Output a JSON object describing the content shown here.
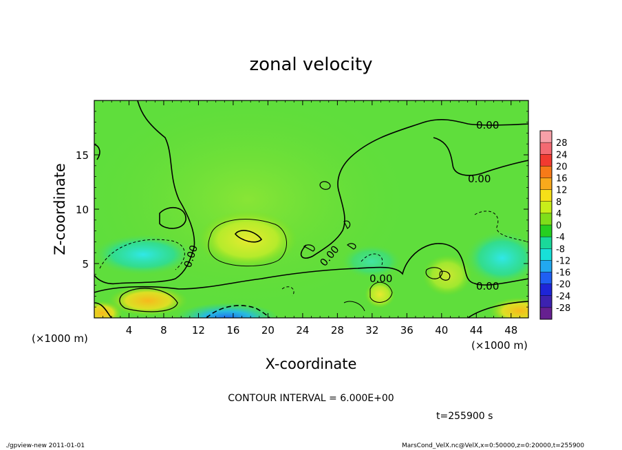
{
  "chart_data": {
    "type": "heatmap",
    "title": "zonal velocity",
    "xlabel": "X-coordinate",
    "ylabel": "Z-coordinate",
    "x_unit_label": "(×1000 m)",
    "z_unit_label": "(×1000 m)",
    "xlim": [
      0,
      50
    ],
    "ylim": [
      0,
      20
    ],
    "x_ticks": [
      4,
      8,
      12,
      16,
      20,
      24,
      28,
      32,
      36,
      40,
      44,
      48
    ],
    "y_ticks": [
      5,
      10,
      15
    ],
    "colorbar_levels": [
      28,
      24,
      20,
      16,
      12,
      8,
      4,
      0,
      -4,
      -8,
      -12,
      -16,
      -20,
      -24,
      -28
    ],
    "colorbar_colors": [
      "#f7a0a8",
      "#f46a72",
      "#f23a30",
      "#f77a18",
      "#f8a91c",
      "#f6e018",
      "#c8ee1a",
      "#7fde1a",
      "#26cf20",
      "#1ad89a",
      "#18e0d8",
      "#22a8f0",
      "#1f5ff3",
      "#1e25d8",
      "#3d22b0",
      "#662090"
    ],
    "contour_interval_text": "CONTOUR INTERVAL = 6.000E+00",
    "contour_labels": [
      "0.00",
      "0.00",
      "0.00",
      "0.00",
      "0.00",
      "0.00"
    ],
    "time_text": "t=255900 s",
    "features": [
      {
        "x": 17.5,
        "z": 7.5,
        "value": 7
      },
      {
        "x": 6.5,
        "z": 1.5,
        "value": 9
      },
      {
        "x": 1.0,
        "z": 0.5,
        "value": 12
      },
      {
        "x": 49.5,
        "z": 0.5,
        "value": 11
      },
      {
        "x": 33.0,
        "z": 2.5,
        "value": 6
      },
      {
        "x": 40.0,
        "z": 3.5,
        "value": 5
      },
      {
        "x": 19.0,
        "z": 0.3,
        "value": -10
      },
      {
        "x": 6.0,
        "z": 5.5,
        "value": -6
      },
      {
        "x": 47.0,
        "z": 6.0,
        "value": -6
      },
      {
        "x": 31.0,
        "z": 6.0,
        "value": -3
      }
    ]
  },
  "footer": {
    "left": "./gpview-new  2011-01-01",
    "right": "MarsCond_VelX.nc@VelX,x=0:50000,z=0:20000,t=255900"
  }
}
